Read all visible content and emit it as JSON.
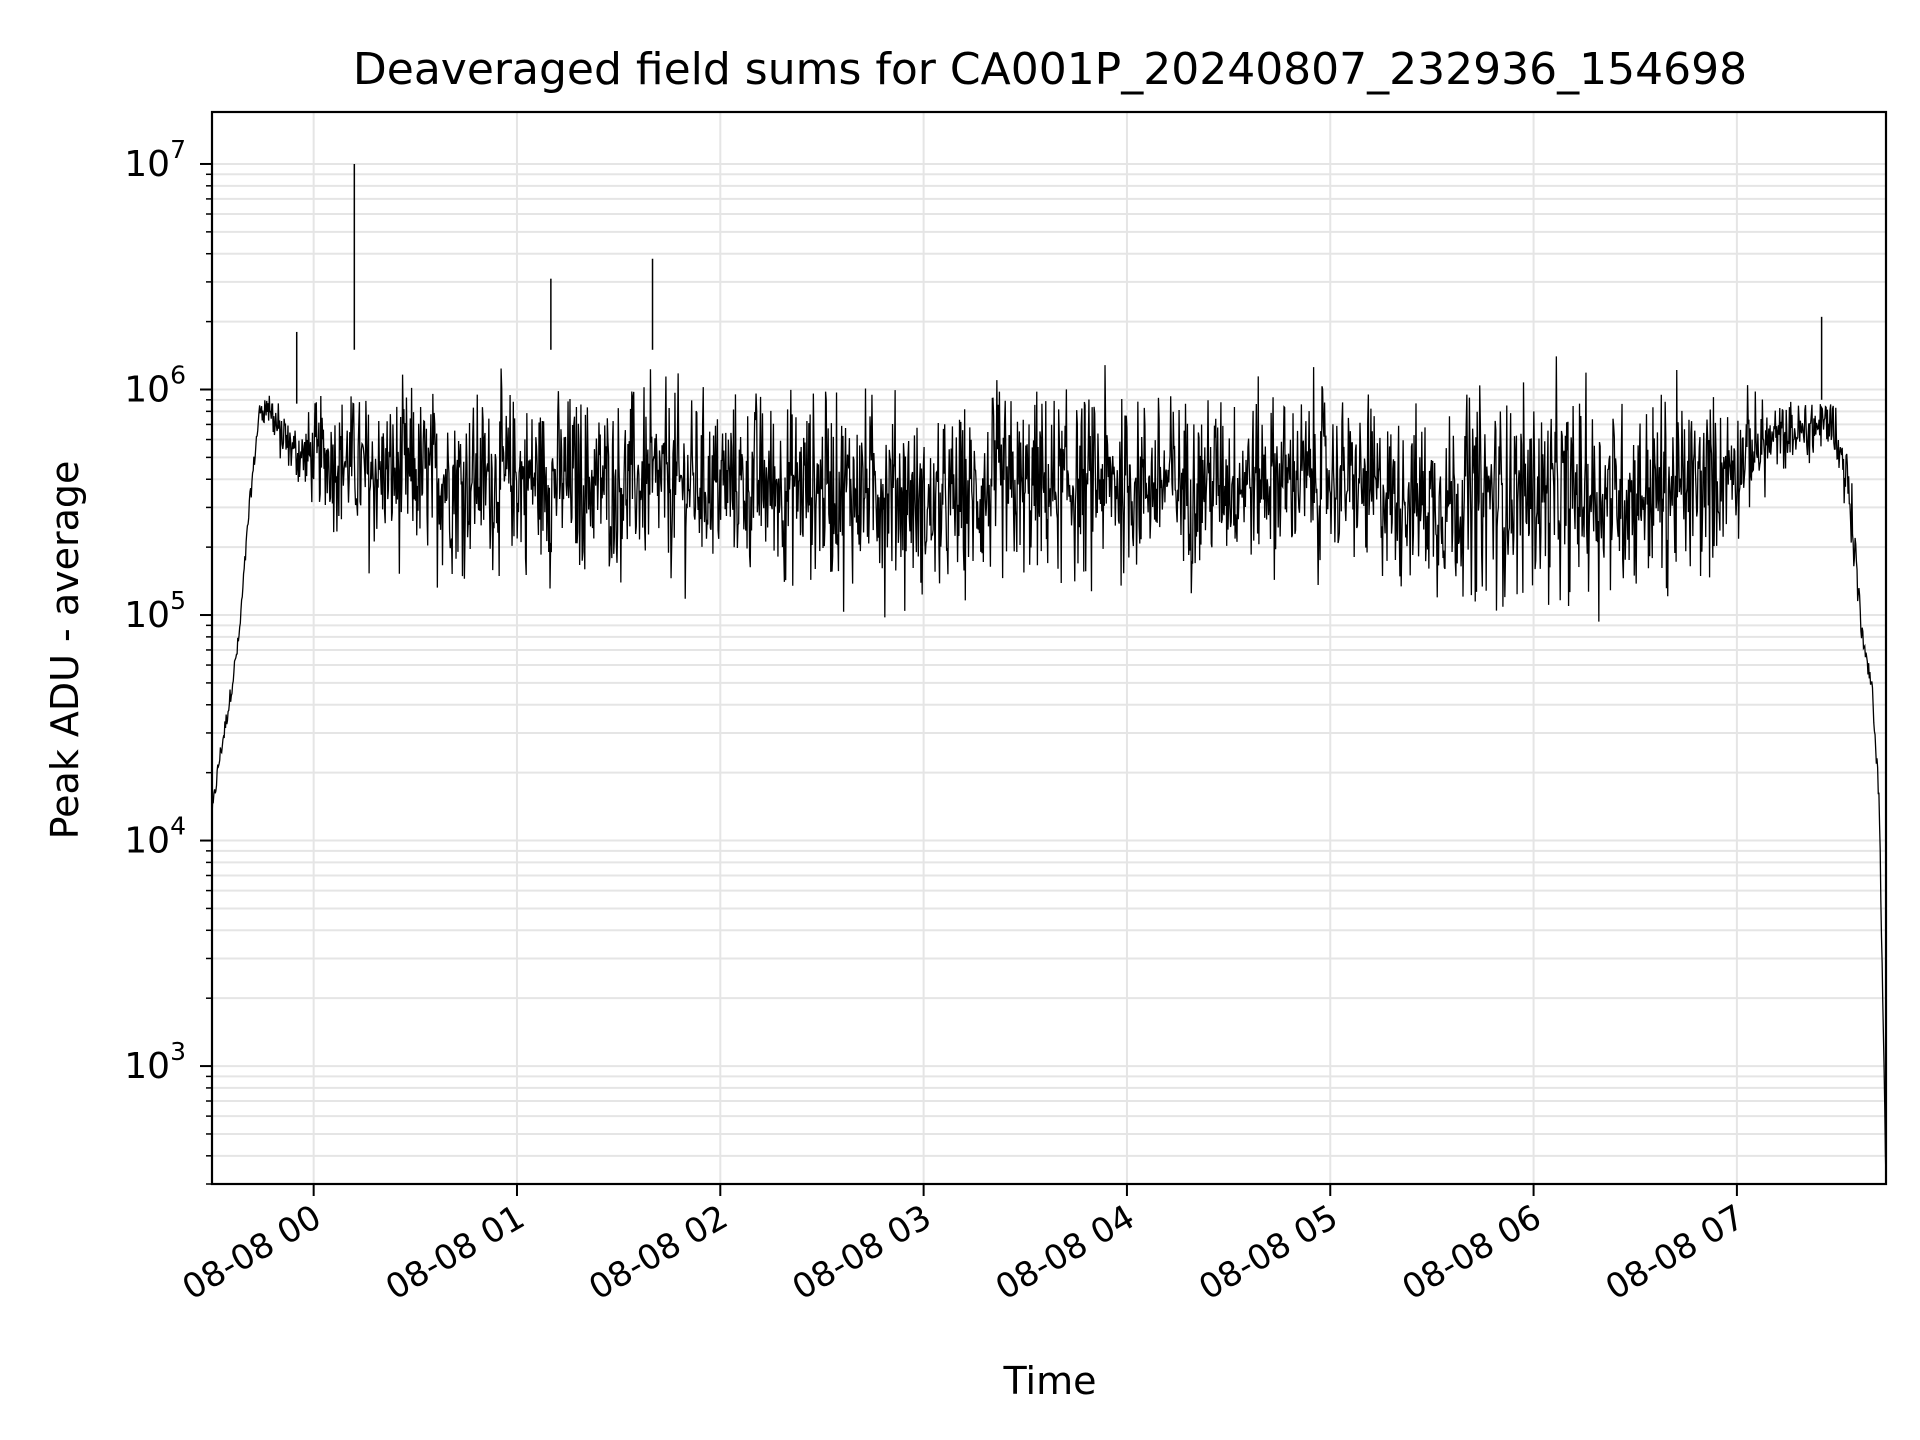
{
  "chart_data": {
    "type": "line",
    "title": "Deaveraged field sums for CA001P_20240807_232936_154698",
    "xlabel": "Time",
    "ylabel": "Peak ADU - average",
    "xlim": [
      "2024-08-07 23:30",
      "2024-08-08 07:44"
    ],
    "ylim": [
      300,
      17000000
    ],
    "yscale": "log",
    "grid": true,
    "legend": "none",
    "line_color": "#000000",
    "grid_color": "#e5e5e5",
    "x_ticks": [
      {
        "value": "2024-08-08 00:00",
        "label": "08-08 00"
      },
      {
        "value": "2024-08-08 01:00",
        "label": "08-08 01"
      },
      {
        "value": "2024-08-08 02:00",
        "label": "08-08 02"
      },
      {
        "value": "2024-08-08 03:00",
        "label": "08-08 03"
      },
      {
        "value": "2024-08-08 04:00",
        "label": "08-08 04"
      },
      {
        "value": "2024-08-08 05:00",
        "label": "08-08 05"
      },
      {
        "value": "2024-08-08 06:00",
        "label": "08-08 06"
      },
      {
        "value": "2024-08-08 07:00",
        "label": "08-08 07"
      }
    ],
    "y_ticks": [
      {
        "value": 1000,
        "base": "10",
        "exp": "3"
      },
      {
        "value": 10000,
        "base": "10",
        "exp": "4"
      },
      {
        "value": 100000,
        "base": "10",
        "exp": "5"
      },
      {
        "value": 1000000,
        "base": "10",
        "exp": "6"
      },
      {
        "value": 10000000,
        "base": "10",
        "exp": "7"
      }
    ],
    "series": [
      {
        "x": [
          "2024-08-07 23:30",
          "2024-08-07 23:32",
          "2024-08-07 23:35",
          "2024-08-07 23:38",
          "2024-08-07 23:41",
          "2024-08-07 23:44",
          "2024-08-07 23:47",
          "2024-08-07 23:50",
          "2024-08-07 23:53",
          "2024-08-07 23:56",
          "2024-08-07 23:59",
          "2024-08-08 00:05",
          "2024-08-08 00:10",
          "2024-08-08 00:15",
          "2024-08-08 00:20",
          "2024-08-08 00:30",
          "2024-08-08 00:45",
          "2024-08-08 01:00",
          "2024-08-08 01:20",
          "2024-08-08 01:40",
          "2024-08-08 01:50",
          "2024-08-08 02:00",
          "2024-08-08 02:20",
          "2024-08-08 02:40",
          "2024-08-08 02:55",
          "2024-08-08 03:00",
          "2024-08-08 03:20",
          "2024-08-08 03:40",
          "2024-08-08 04:00",
          "2024-08-08 04:20",
          "2024-08-08 04:40",
          "2024-08-08 05:00",
          "2024-08-08 05:15",
          "2024-08-08 05:30",
          "2024-08-08 05:50",
          "2024-08-08 06:10",
          "2024-08-08 06:30",
          "2024-08-08 06:50",
          "2024-08-08 07:05",
          "2024-08-08 07:15",
          "2024-08-08 07:22",
          "2024-08-08 07:28",
          "2024-08-08 07:33",
          "2024-08-08 07:37",
          "2024-08-08 07:40",
          "2024-08-08 07:42",
          "2024-08-08 07:44"
        ],
        "low": [
          13000,
          22000,
          40000,
          80000,
          300000,
          800000,
          700000,
          500000,
          380000,
          300000,
          250000,
          200000,
          150000,
          120000,
          120000,
          110000,
          110000,
          110000,
          100000,
          100000,
          100000,
          100000,
          95000,
          90000,
          90000,
          80000,
          80000,
          90000,
          100000,
          100000,
          110000,
          120000,
          100000,
          80000,
          80000,
          80000,
          80000,
          90000,
          250000,
          400000,
          500000,
          600000,
          200000,
          80000,
          45000,
          15000,
          300
        ],
        "high": [
          13000,
          22000,
          40000,
          80000,
          300000,
          800000,
          1000000,
          800000,
          800000,
          900000,
          1000000,
          1300000,
          1500000,
          1500000,
          1500000,
          1500000,
          1500000,
          1500000,
          1500000,
          1500000,
          1450000,
          1500000,
          1500000,
          1500000,
          1400000,
          1000000,
          1500000,
          1500000,
          1500000,
          1500000,
          1500000,
          1400000,
          1200000,
          1300000,
          1500000,
          1500000,
          1500000,
          1500000,
          1200000,
          1000000,
          900000,
          900000,
          700000,
          80000,
          45000,
          15000,
          300
        ],
        "spikes": [
          {
            "x": "2024-08-08 00:12",
            "y": 10000000
          },
          {
            "x": "2024-08-08 01:10",
            "y": 3100000
          },
          {
            "x": "2024-08-08 01:40",
            "y": 3800000
          },
          {
            "x": "2024-08-08 07:25",
            "y": 2100000
          },
          {
            "x": "2024-08-07 23:55",
            "y": 1800000
          }
        ]
      }
    ]
  }
}
